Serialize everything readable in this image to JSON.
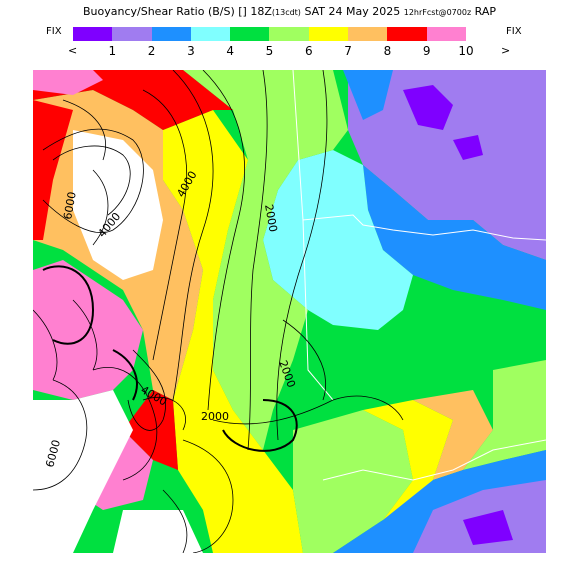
{
  "header": {
    "title_main": "Buoyancy/Shear Ratio (B/S)",
    "title_units": "[] 18Z",
    "title_run": "(13cdt)",
    "title_date": "SAT 24 May 2025",
    "title_fcst": "12hrFcst@0700z",
    "title_model": "RAP"
  },
  "legend": {
    "fix_left": "FIX",
    "fix_right": "FIX",
    "less_arrow": "<",
    "greater_arrow": ">",
    "ticks": [
      "1",
      "2",
      "3",
      "4",
      "5",
      "6",
      "7",
      "8",
      "9",
      "10"
    ],
    "colors": [
      "#7f00ff",
      "#a07cf0",
      "#1e90ff",
      "#80ffff",
      "#00e040",
      "#a0ff60",
      "#ffff00",
      "#ffc060",
      "#ff0000",
      "#ff80d0"
    ]
  },
  "map": {
    "contour_labels": [
      "6000",
      "4000",
      "4000",
      "2000",
      "2000",
      "4000",
      "2000",
      "6000"
    ]
  }
}
